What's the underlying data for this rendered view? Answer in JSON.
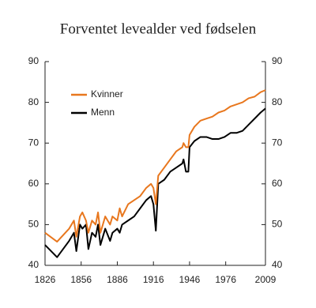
{
  "chart_data": {
    "type": "line",
    "title": "Forventet levealder ved fødselen",
    "x": [
      1826,
      1836,
      1846,
      1850,
      1852,
      1855,
      1857,
      1860,
      1862,
      1865,
      1868,
      1870,
      1872,
      1876,
      1880,
      1882,
      1886,
      1888,
      1890,
      1895,
      1900,
      1905,
      1910,
      1914,
      1916,
      1918,
      1920,
      1925,
      1930,
      1935,
      1940,
      1941,
      1943,
      1945,
      1946,
      1950,
      1955,
      1960,
      1965,
      1970,
      1975,
      1980,
      1985,
      1990,
      1995,
      2000,
      2005,
      2009
    ],
    "series": [
      {
        "name": "Kvinner",
        "color": "#e8771e",
        "values": [
          48,
          45.8,
          49,
          51,
          47,
          52,
          53,
          51,
          48,
          51,
          50,
          53,
          48,
          52,
          50,
          52,
          51,
          54,
          52,
          55,
          56,
          57,
          59,
          60,
          59,
          55,
          62,
          64,
          66,
          68,
          69,
          70,
          69,
          69,
          72,
          74,
          75.5,
          76,
          76.5,
          77.5,
          78,
          79,
          79.5,
          80,
          81,
          81.4,
          82.5,
          83
        ]
      },
      {
        "name": "Menn",
        "color": "#000000",
        "values": [
          45,
          42,
          46,
          48,
          43.5,
          50,
          49,
          50,
          44,
          48,
          47,
          50,
          45,
          49,
          46,
          48,
          49,
          48,
          50,
          51,
          52,
          54,
          56,
          57,
          55,
          48.5,
          60,
          61,
          63,
          64,
          65,
          66,
          63,
          63,
          69,
          70.5,
          71.5,
          71.5,
          71,
          71,
          71.5,
          72.5,
          72.5,
          73,
          74.5,
          76,
          77.5,
          78.5
        ]
      }
    ],
    "xlim": [
      1826,
      2009
    ],
    "xticks": [
      1826,
      1856,
      1886,
      1916,
      1946,
      1976,
      2009
    ],
    "ylim": [
      40,
      90
    ],
    "yticks": [
      40,
      50,
      60,
      70,
      80,
      90
    ],
    "y2lim": [
      40,
      90
    ],
    "y2ticks": [
      40,
      50,
      60,
      70,
      80,
      90
    ],
    "legend": "upper left"
  }
}
